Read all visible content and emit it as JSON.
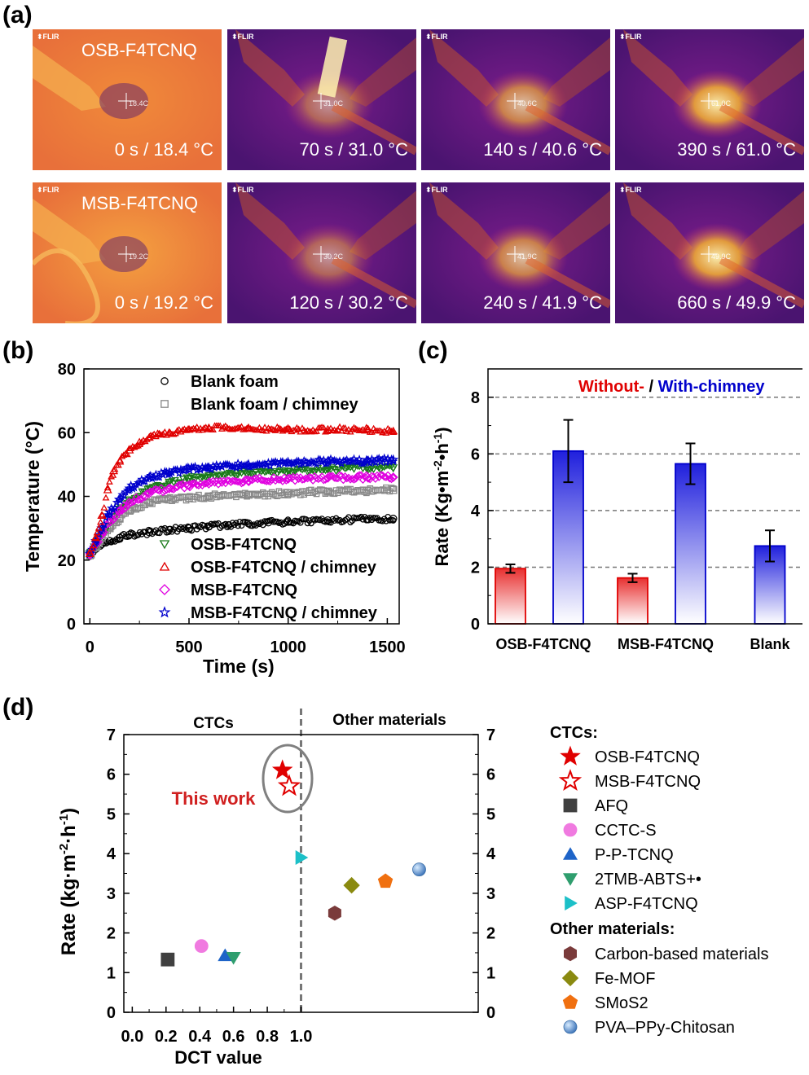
{
  "panel_labels": {
    "a": "(a)",
    "b": "(b)",
    "c": "(c)",
    "d": "(d)"
  },
  "thermal": {
    "brand": "FLIR",
    "rows": [
      {
        "name": "OSB-F4TCNQ",
        "frames": [
          {
            "caption": "0 s / 18.4 °C",
            "reading": "18.4C"
          },
          {
            "caption": "70 s / 31.0 °C",
            "reading": "31.0C"
          },
          {
            "caption": "140 s / 40.6 °C",
            "reading": "40.6C"
          },
          {
            "caption": "390 s / 61.0 °C",
            "reading": "61.0C"
          }
        ]
      },
      {
        "name": "MSB-F4TCNQ",
        "frames": [
          {
            "caption": "0 s / 19.2 °C",
            "reading": "19.2C"
          },
          {
            "caption": "120 s / 30.2 °C",
            "reading": "30.2C"
          },
          {
            "caption": "240 s / 41.9 °C",
            "reading": "41.9C"
          },
          {
            "caption": "660 s / 49.9 °C",
            "reading": "49.9C"
          }
        ]
      }
    ]
  },
  "chart_data": [
    {
      "panel": "b",
      "type": "scatter",
      "xlabel": "Time (s)",
      "ylabel": "Temperature (°C)",
      "xlim": [
        -30,
        1560
      ],
      "ylim": [
        0,
        80
      ],
      "xticks": [
        "0",
        "500",
        "1000",
        "1500"
      ],
      "yticks": [
        "0",
        "20",
        "40",
        "60",
        "80"
      ],
      "legend_top": [
        "Blank foam",
        "Blank foam  / chimney"
      ],
      "legend_bottom": [
        "OSB-F4TCNQ",
        "OSB-F4TCNQ / chimney",
        "MSB-F4TCNQ",
        "MSB-F4TCNQ / chimney"
      ],
      "series": [
        {
          "name": "Blank foam",
          "marker": "circle",
          "color": "#000000",
          "points": [
            [
              0,
              21.5
            ],
            [
              30,
              23.5
            ],
            [
              60,
              25
            ],
            [
              100,
              26
            ],
            [
              150,
              27
            ],
            [
              200,
              28
            ],
            [
              300,
              28.7
            ],
            [
              400,
              29.5
            ],
            [
              500,
              30
            ],
            [
              600,
              30.5
            ],
            [
              700,
              31
            ],
            [
              800,
              31.5
            ],
            [
              900,
              31.8
            ],
            [
              1000,
              32
            ],
            [
              1200,
              32.5
            ],
            [
              1400,
              32.8
            ],
            [
              1530,
              33
            ]
          ]
        },
        {
          "name": "Blank foam  / chimney",
          "marker": "square",
          "color": "#888888",
          "points": [
            [
              0,
              21.5
            ],
            [
              30,
              24
            ],
            [
              60,
              27
            ],
            [
              100,
              30
            ],
            [
              150,
              33
            ],
            [
              200,
              35.5
            ],
            [
              300,
              38
            ],
            [
              400,
              39
            ],
            [
              500,
              39.5
            ],
            [
              600,
              40
            ],
            [
              800,
              40.5
            ],
            [
              1000,
              41
            ],
            [
              1200,
              41.5
            ],
            [
              1400,
              41.8
            ],
            [
              1530,
              42
            ]
          ]
        },
        {
          "name": "OSB-F4TCNQ",
          "marker": "triangle-down",
          "color": "#1a7a1a",
          "points": [
            [
              0,
              22
            ],
            [
              30,
              25
            ],
            [
              60,
              28
            ],
            [
              100,
              32
            ],
            [
              150,
              36
            ],
            [
              200,
              39
            ],
            [
              300,
              42.5
            ],
            [
              400,
              44.5
            ],
            [
              500,
              45.5
            ],
            [
              600,
              46.5
            ],
            [
              800,
              47.5
            ],
            [
              1000,
              48
            ],
            [
              1200,
              48.5
            ],
            [
              1400,
              49
            ],
            [
              1530,
              49
            ]
          ]
        },
        {
          "name": "OSB-F4TCNQ / chimney",
          "marker": "triangle-up",
          "color": "#e00000",
          "points": [
            [
              0,
              22
            ],
            [
              30,
              27
            ],
            [
              60,
              34
            ],
            [
              90,
              42
            ],
            [
              120,
              48
            ],
            [
              150,
              51
            ],
            [
              200,
              54.5
            ],
            [
              250,
              57
            ],
            [
              300,
              58.5
            ],
            [
              350,
              59.5
            ],
            [
              400,
              60
            ],
            [
              500,
              61
            ],
            [
              600,
              61.5
            ],
            [
              800,
              61.5
            ],
            [
              1000,
              61
            ],
            [
              1200,
              61
            ],
            [
              1400,
              61
            ],
            [
              1530,
              60.5
            ]
          ]
        },
        {
          "name": "MSB-F4TCNQ",
          "marker": "diamond",
          "color": "#e000e0",
          "points": [
            [
              0,
              22
            ],
            [
              30,
              25
            ],
            [
              60,
              28
            ],
            [
              100,
              32
            ],
            [
              150,
              35.5
            ],
            [
              200,
              38
            ],
            [
              300,
              41
            ],
            [
              400,
              42.5
            ],
            [
              500,
              43.5
            ],
            [
              600,
              44
            ],
            [
              800,
              45
            ],
            [
              1000,
              45.5
            ],
            [
              1200,
              45.8
            ],
            [
              1400,
              46
            ],
            [
              1530,
              46
            ]
          ]
        },
        {
          "name": "MSB-F4TCNQ / chimney",
          "marker": "star",
          "color": "#0000cc",
          "points": [
            [
              0,
              22
            ],
            [
              30,
              26
            ],
            [
              60,
              30
            ],
            [
              100,
              35
            ],
            [
              150,
              39
            ],
            [
              200,
              42.5
            ],
            [
              300,
              46
            ],
            [
              400,
              47.5
            ],
            [
              500,
              48.5
            ],
            [
              600,
              49
            ],
            [
              800,
              50
            ],
            [
              1000,
              50.5
            ],
            [
              1200,
              51
            ],
            [
              1400,
              51
            ],
            [
              1530,
              51.5
            ]
          ]
        }
      ]
    },
    {
      "panel": "c",
      "type": "bar",
      "ylabel": "Rate (Kg•m-2•h-1)",
      "ylim": [
        0,
        9
      ],
      "yticks": [
        "0",
        "2",
        "4",
        "6",
        "8"
      ],
      "title_without": "Without- ",
      "title_sep": "/ ",
      "title_with": "With-chimney",
      "categories": [
        "OSB-F4TCNQ",
        "MSB-F4TCNQ",
        "Blank"
      ],
      "series": [
        {
          "name": "Without-",
          "color": "#e00000",
          "values": [
            1.95,
            1.62,
            null
          ],
          "errors": [
            0.15,
            0.15,
            null
          ]
        },
        {
          "name": "With-chimney",
          "color": "#0000cc",
          "values": [
            6.1,
            5.65,
            2.75
          ],
          "errors": [
            1.1,
            0.72,
            0.55
          ]
        }
      ],
      "gridlines_y": [
        2,
        4,
        6,
        8
      ]
    },
    {
      "panel": "d",
      "type": "scatter",
      "xlabel": "DCT value",
      "ylabel": "Rate (kg·m-2·h-1)",
      "xlim": [
        -0.05,
        2.05
      ],
      "ylim": [
        0,
        7
      ],
      "xticks": [
        "0.0",
        "0.2",
        "0.4",
        "0.6",
        "0.8",
        "1.0"
      ],
      "yticks": [
        "0",
        "1",
        "2",
        "3",
        "4",
        "5",
        "6",
        "7"
      ],
      "region_left": "CTCs",
      "region_right": "Other materials",
      "annotation": "This work",
      "legend_heading_1": "CTCs:",
      "legend_heading_2": "Other materials:",
      "series": [
        {
          "name": "OSB-F4TCNQ",
          "group": "CTCs",
          "marker": "star-filled",
          "color": "#e00000",
          "x": 0.89,
          "y": 6.1
        },
        {
          "name": "MSB-F4TCNQ",
          "group": "CTCs",
          "marker": "star-open",
          "color": "#e00000",
          "x": 0.93,
          "y": 5.7
        },
        {
          "name": "AFQ",
          "group": "CTCs",
          "marker": "square",
          "color": "#404040",
          "x": 0.21,
          "y": 1.33
        },
        {
          "name": "CCTC-S",
          "group": "CTCs",
          "marker": "circle",
          "color": "#f07ae0",
          "x": 0.41,
          "y": 1.67
        },
        {
          "name": "P-P-TCNQ",
          "group": "CTCs",
          "marker": "triangle-up",
          "color": "#1e64c8",
          "x": 0.55,
          "y": 1.43
        },
        {
          "name": "2TMB-ABTS+•",
          "group": "CTCs",
          "marker": "triangle-down",
          "color": "#2f9e6e",
          "x": 0.6,
          "y": 1.38
        },
        {
          "name": "ASP-F4TCNQ",
          "group": "CTCs",
          "marker": "triangle-right",
          "color": "#1cc0c8",
          "x": 1.0,
          "y": 3.9
        },
        {
          "name": "Carbon-based materials",
          "group": "Other materials",
          "marker": "hexagon",
          "color": "#7a3b3b",
          "x": 1.2,
          "y": 2.5
        },
        {
          "name": "Fe-MOF",
          "group": "Other materials",
          "marker": "diamond",
          "color": "#8a8a10",
          "x": 1.3,
          "y": 3.2
        },
        {
          "name": "SMoS2",
          "group": "Other materials",
          "marker": "pentagon",
          "color": "#f07010",
          "x": 1.5,
          "y": 3.3
        },
        {
          "name": "PVA–PPy-Chitosan",
          "group": "Other materials",
          "marker": "sphere",
          "color": "#5a8ec8",
          "x": 1.7,
          "y": 3.6
        }
      ]
    }
  ]
}
